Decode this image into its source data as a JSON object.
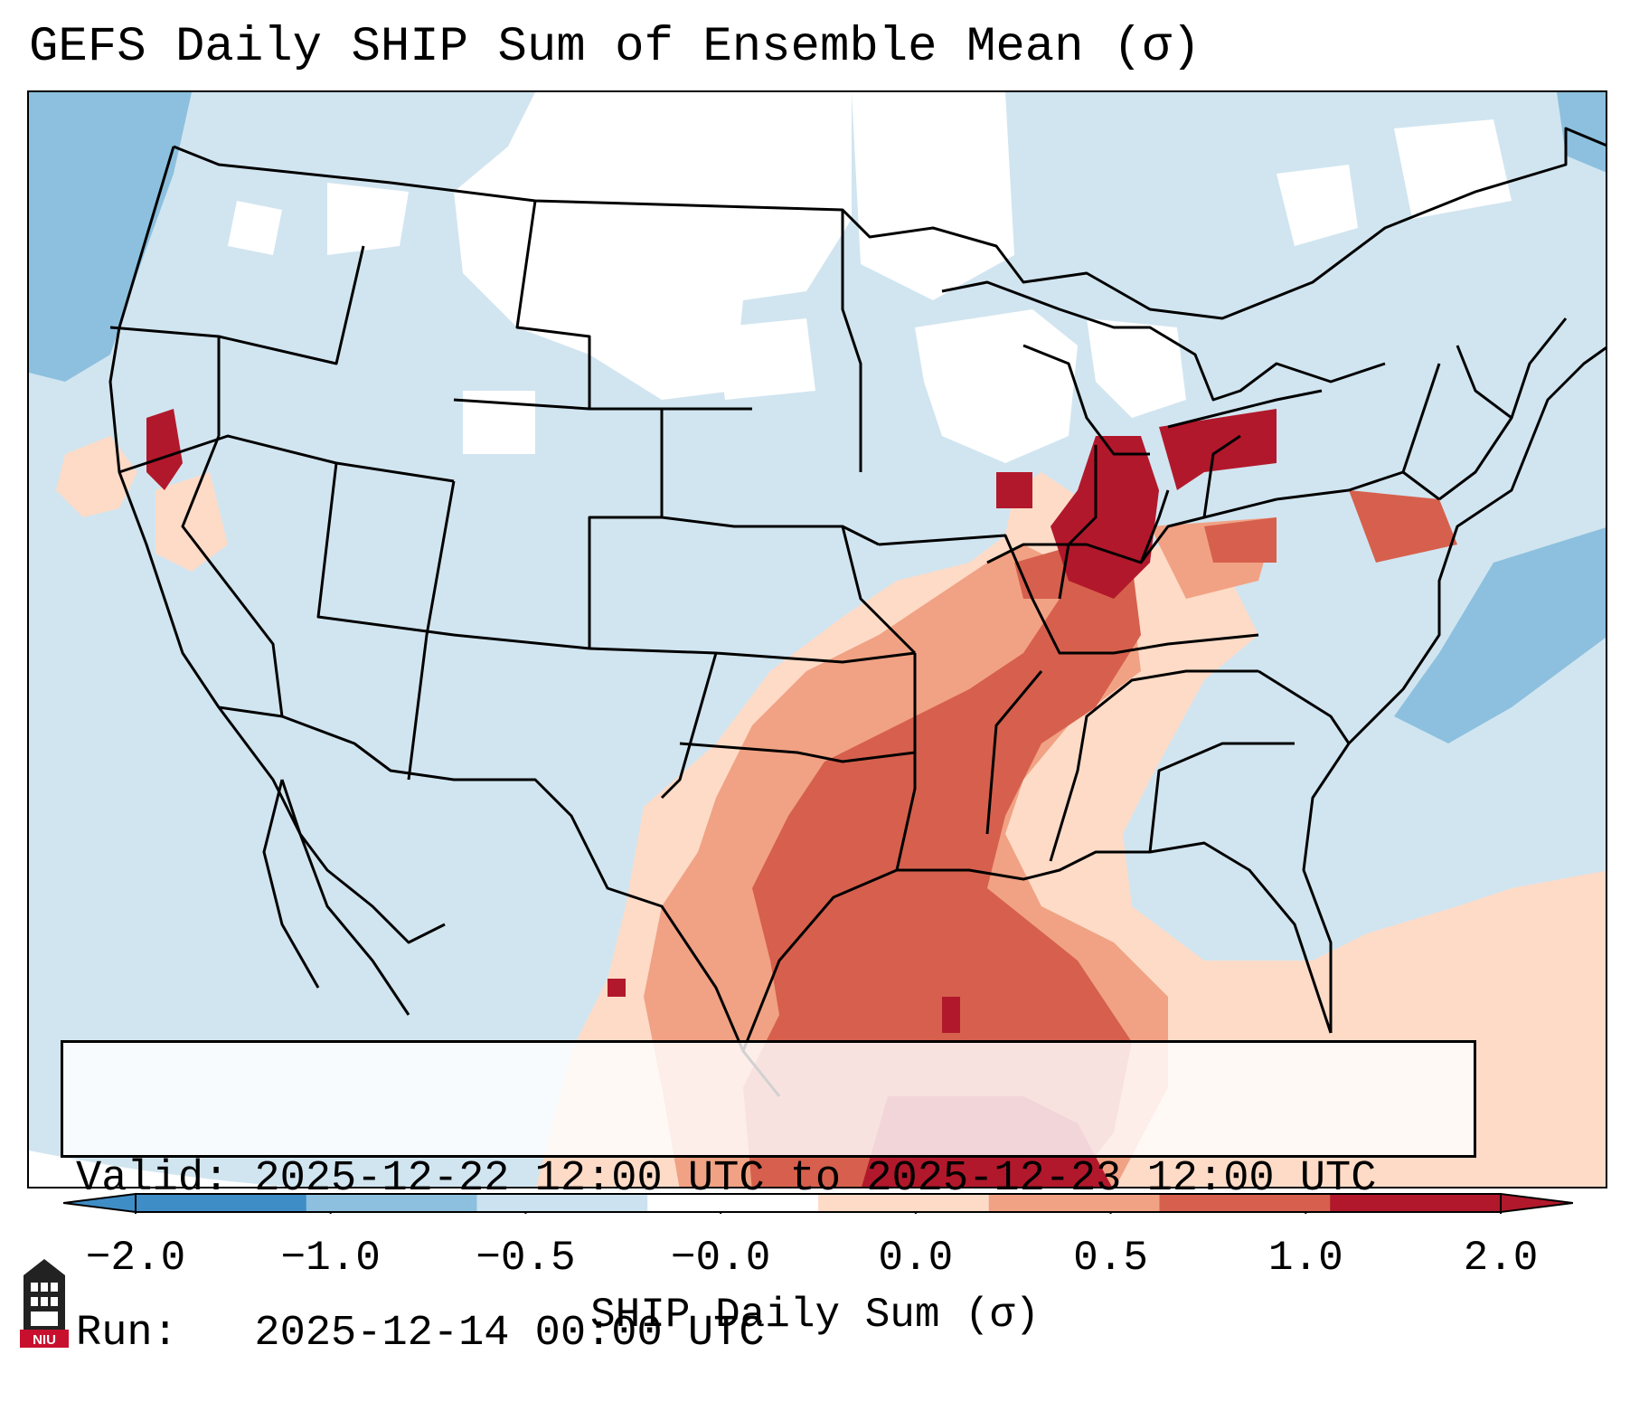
{
  "title": "GEFS Daily SHIP Sum of Ensemble Mean (σ)",
  "info": {
    "valid_line": "Valid: 2025-12-22 12:00 UTC to 2025-12-23 12:00 UTC",
    "run_line": "Run:   2025-12-14 00:00 UTC"
  },
  "colorbar": {
    "label": "SHIP Daily Sum (σ)",
    "ticks": [
      "−2.0",
      "−1.0",
      "−0.5",
      "−0.0",
      "0.0",
      "0.5",
      "1.0",
      "2.0"
    ],
    "colors": [
      "#3f8dc6",
      "#8cc0de",
      "#cce2f0",
      "#ffffff",
      "#fddbc7",
      "#f1a284",
      "#d6604d",
      "#b2182b"
    ],
    "extend": "both"
  },
  "map": {
    "region": "Contiguous United States",
    "background_color": "#d1e5f0",
    "high_value_areas": [
      "Ohio Valley",
      "Southern Plains",
      "Gulf of Mexico"
    ]
  },
  "logo": {
    "text": "NIU"
  }
}
